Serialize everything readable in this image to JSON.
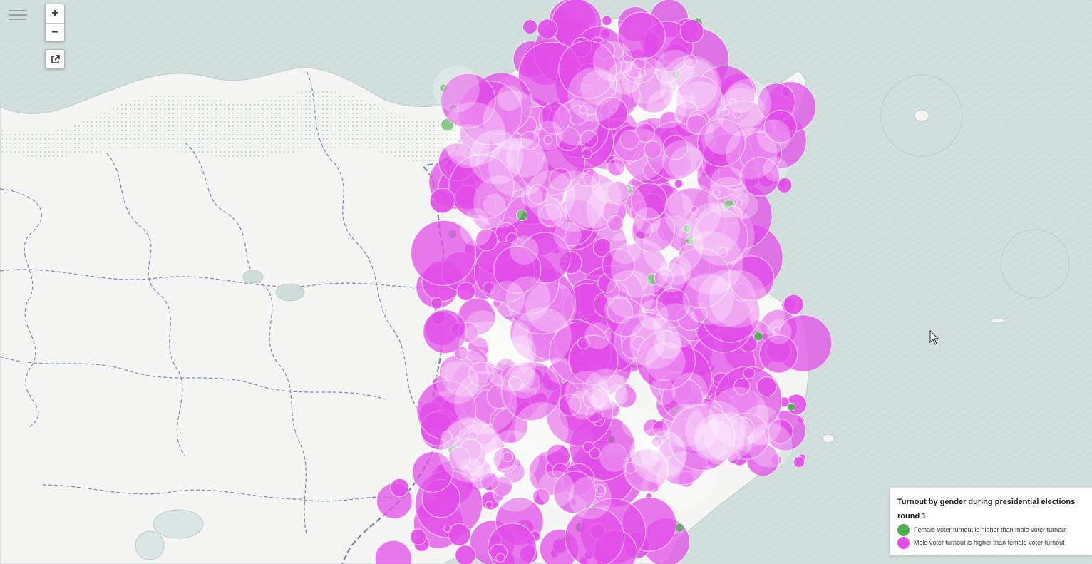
{
  "map": {
    "zoom_controls": {
      "zoom_in": "+",
      "zoom_out": "−"
    },
    "icons": {
      "menu": "hamburger-icon",
      "fullscreen": "external-link-icon",
      "cursor": "pointer-cursor-icon"
    },
    "colors": {
      "sea": "#cfdedb",
      "land": "#f5f6f3",
      "female_higher": "#4caf50",
      "male_higher": "#e24ee8"
    }
  },
  "legend": {
    "title": "Turnout by gender during presidential elections round 1",
    "items": [
      {
        "label": "Female voter turnout is higher than male voter turnout",
        "color": "#4caf50"
      },
      {
        "label": "Male voter turnout is higher than female voter turnout",
        "color": "#e24ee8"
      }
    ]
  }
}
